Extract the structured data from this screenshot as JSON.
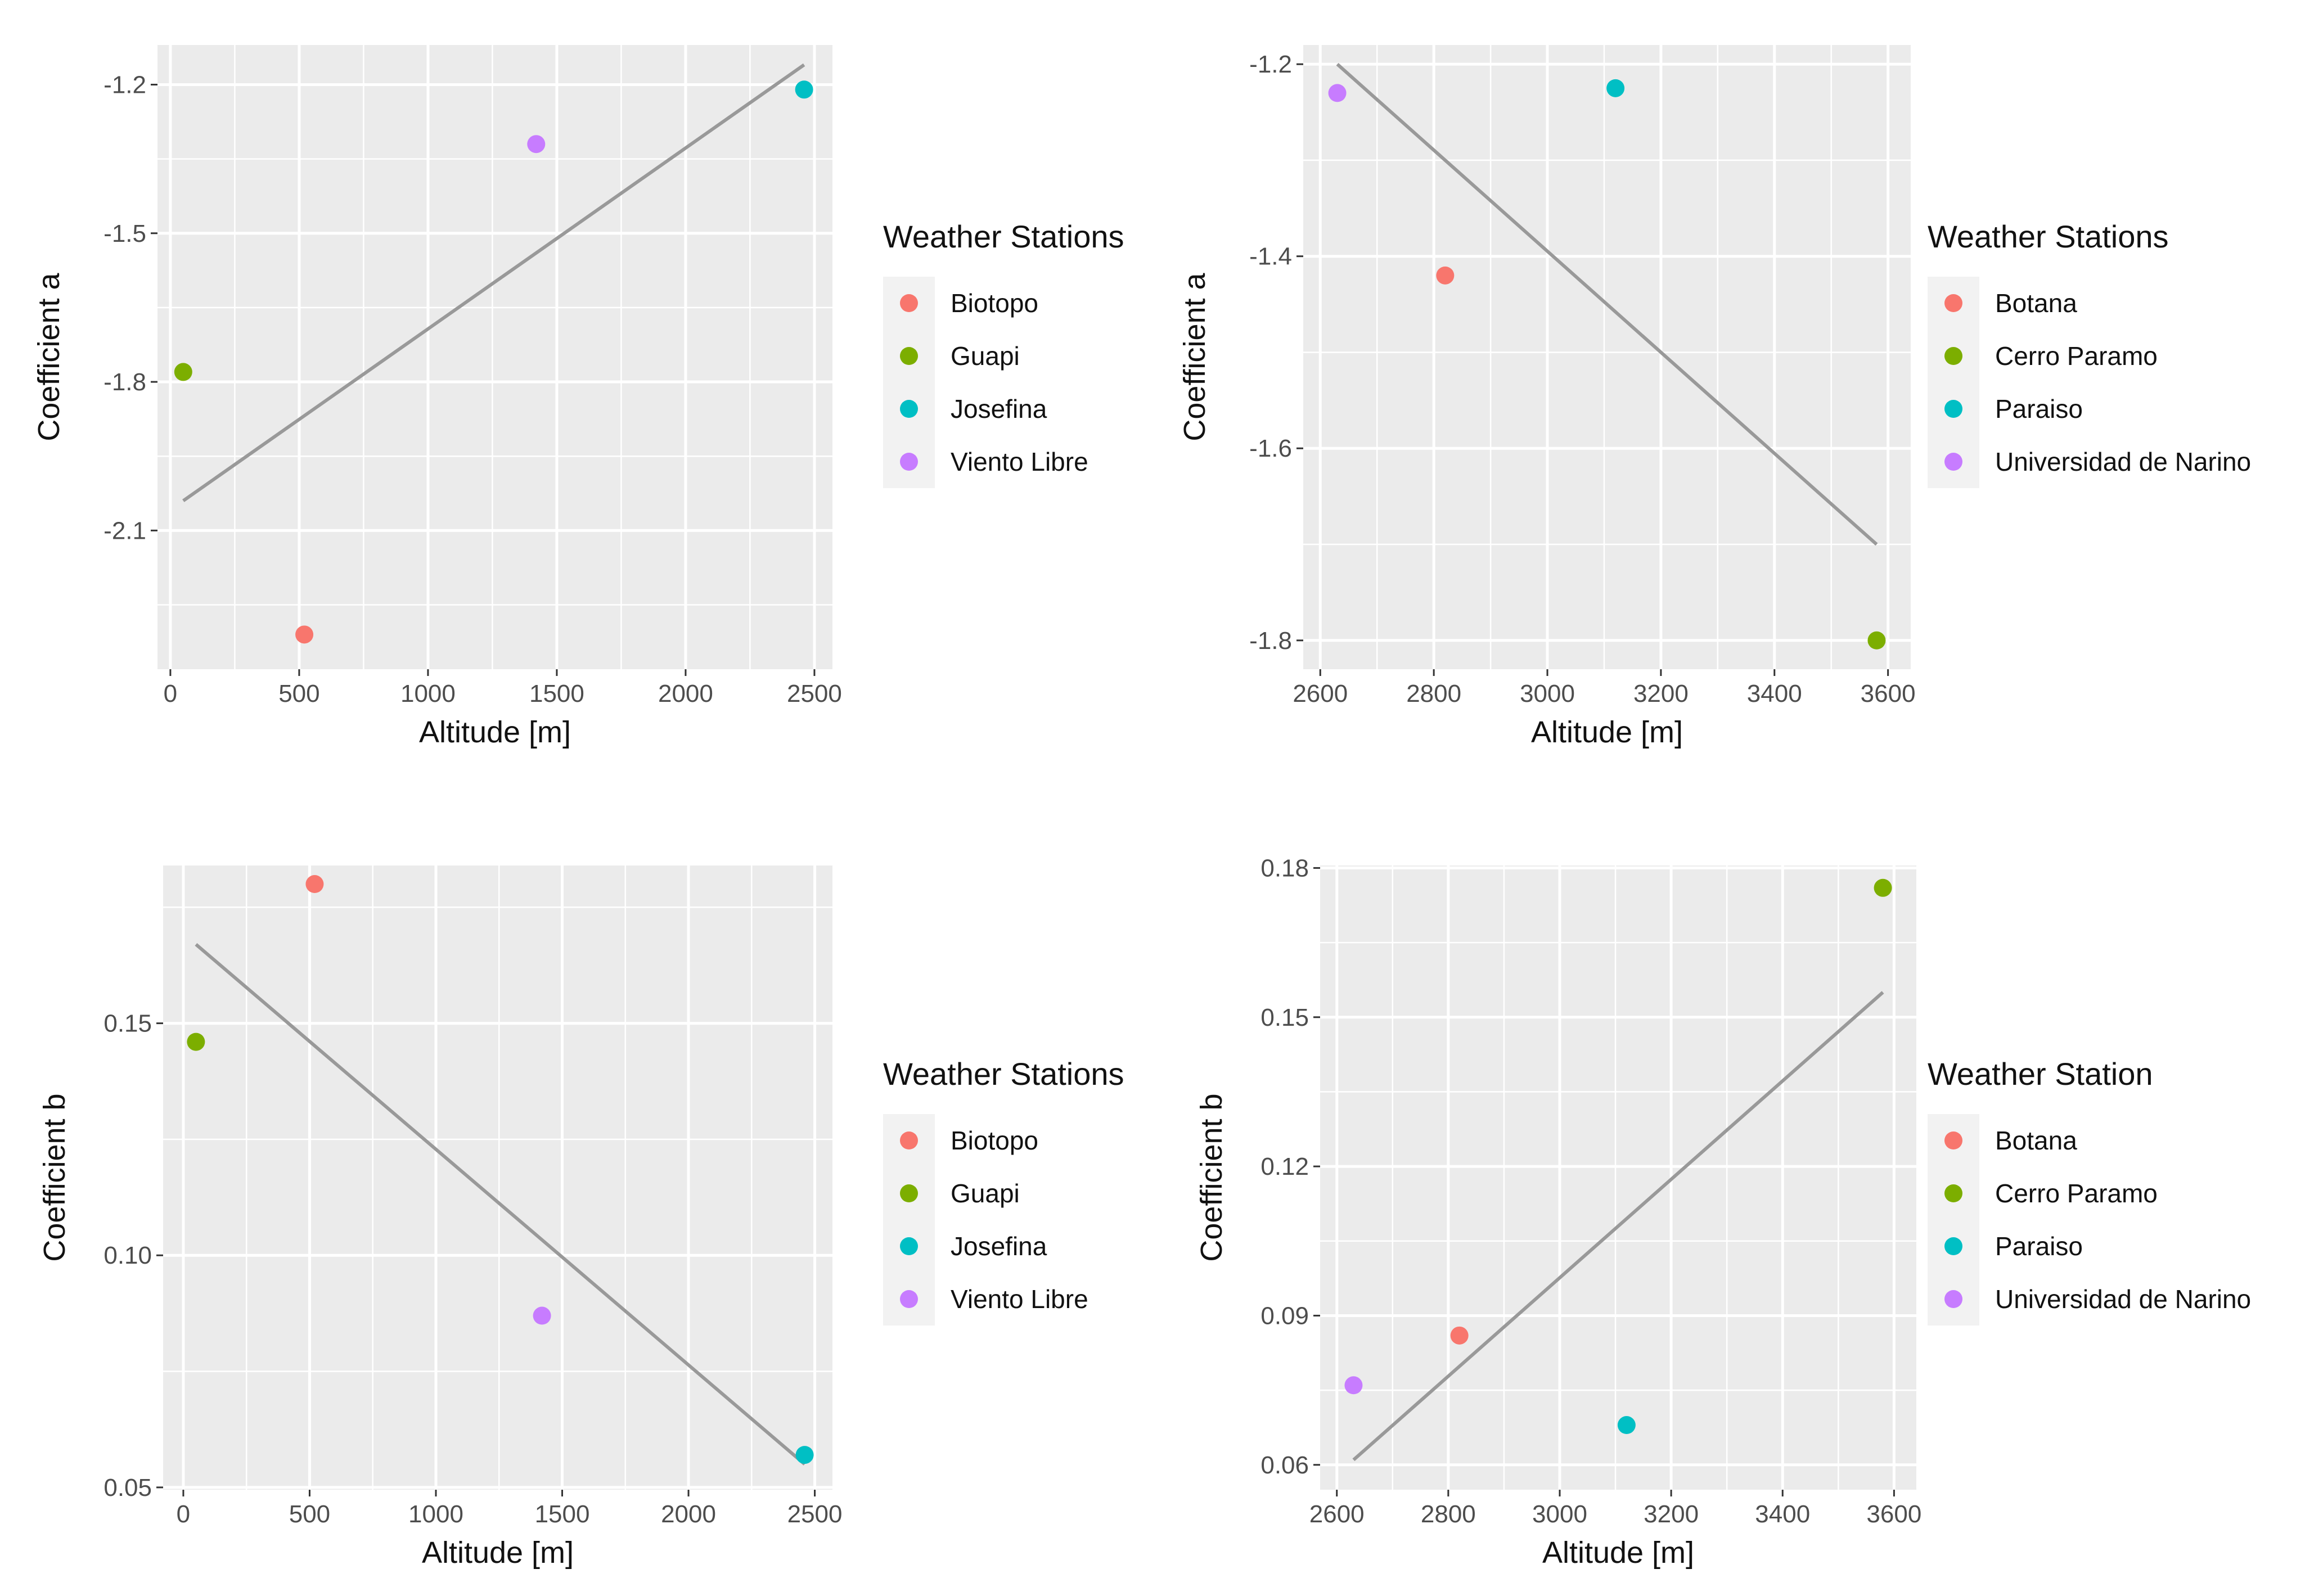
{
  "chart_data": [
    {
      "type": "scatter",
      "xlabel": "Altitude [m]",
      "ylabel": "Coefficient a",
      "xlim": [
        -50,
        2570
      ],
      "ylim": [
        -2.38,
        -1.12
      ],
      "xticks": [
        0,
        500,
        1000,
        1500,
        2000,
        2500
      ],
      "xtick_labels": [
        "0",
        "500",
        "1000",
        "1500",
        "2000",
        "2500"
      ],
      "yticks": [
        -1.2,
        -1.5,
        -1.8,
        -2.1
      ],
      "ytick_labels": [
        "-1.2",
        "-1.5",
        "-1.8",
        "-2.1"
      ],
      "legend_title": "Weather Stations",
      "series": [
        {
          "name": "Biotopo",
          "color": "#F8766D",
          "x": 520,
          "y": -2.31
        },
        {
          "name": "Guapi",
          "color": "#7CAE00",
          "x": 50,
          "y": -1.78
        },
        {
          "name": "Josefina",
          "color": "#00BFC4",
          "x": 2460,
          "y": -1.21
        },
        {
          "name": "Viento Libre",
          "color": "#C77CFF",
          "x": 1420,
          "y": -1.32
        }
      ],
      "fit_line": {
        "color": "#999999",
        "x": [
          50,
          2460
        ],
        "y": [
          -2.04,
          -1.16
        ]
      }
    },
    {
      "type": "scatter",
      "xlabel": "Altitude [m]",
      "ylabel": "Coefficient a",
      "xlim": [
        2570,
        3640
      ],
      "ylim": [
        -1.83,
        -1.18
      ],
      "xticks": [
        2600,
        2800,
        3000,
        3200,
        3400,
        3600
      ],
      "xtick_labels": [
        "2600",
        "2800",
        "3000",
        "3200",
        "3400",
        "3600"
      ],
      "yticks": [
        -1.2,
        -1.4,
        -1.6,
        -1.8
      ],
      "ytick_labels": [
        "-1.2",
        "-1.4",
        "-1.6",
        "-1.8"
      ],
      "legend_title": "Weather Stations",
      "series": [
        {
          "name": "Botana",
          "color": "#F8766D",
          "x": 2820,
          "y": -1.42
        },
        {
          "name": "Cerro Paramo",
          "color": "#7CAE00",
          "x": 3580,
          "y": -1.8
        },
        {
          "name": "Paraiso",
          "color": "#00BFC4",
          "x": 3120,
          "y": -1.225
        },
        {
          "name": "Universidad de Narino",
          "color": "#C77CFF",
          "x": 2630,
          "y": -1.23
        }
      ],
      "fit_line": {
        "color": "#999999",
        "x": [
          2630,
          3580
        ],
        "y": [
          -1.2,
          -1.7
        ]
      }
    },
    {
      "type": "scatter",
      "xlabel": "Altitude [m]",
      "ylabel": "Coefficient b",
      "xlim": [
        -80,
        2570
      ],
      "ylim": [
        0.0495,
        0.184
      ],
      "xticks": [
        0,
        500,
        1000,
        1500,
        2000,
        2500
      ],
      "xtick_labels": [
        "0",
        "500",
        "1000",
        "1500",
        "2000",
        "2500"
      ],
      "yticks": [
        0.15,
        0.1,
        0.05
      ],
      "ytick_labels": [
        "0.15",
        "0.10",
        "0.05"
      ],
      "legend_title": "Weather Stations",
      "series": [
        {
          "name": "Biotopo",
          "color": "#F8766D",
          "x": 520,
          "y": 0.18
        },
        {
          "name": "Guapi",
          "color": "#7CAE00",
          "x": 50,
          "y": 0.146
        },
        {
          "name": "Josefina",
          "color": "#00BFC4",
          "x": 2460,
          "y": 0.057
        },
        {
          "name": "Viento Libre",
          "color": "#C77CFF",
          "x": 1420,
          "y": 0.087
        }
      ],
      "fit_line": {
        "color": "#999999",
        "x": [
          50,
          2460
        ],
        "y": [
          0.167,
          0.055
        ]
      }
    },
    {
      "type": "scatter",
      "xlabel": "Altitude [m]",
      "ylabel": "Coefficient b",
      "xlim": [
        2570,
        3640
      ],
      "ylim": [
        0.055,
        0.1805
      ],
      "xticks": [
        2600,
        2800,
        3000,
        3200,
        3400,
        3600
      ],
      "xtick_labels": [
        "2600",
        "2800",
        "3000",
        "3200",
        "3400",
        "3600"
      ],
      "yticks": [
        0.18,
        0.15,
        0.12,
        0.09,
        0.06
      ],
      "ytick_labels": [
        "0.18",
        "0.15",
        "0.12",
        "0.09",
        "0.06"
      ],
      "legend_title": "Weather Station",
      "series": [
        {
          "name": "Botana",
          "color": "#F8766D",
          "x": 2820,
          "y": 0.086
        },
        {
          "name": "Cerro Paramo",
          "color": "#7CAE00",
          "x": 3580,
          "y": 0.176
        },
        {
          "name": "Paraiso",
          "color": "#00BFC4",
          "x": 3120,
          "y": 0.068
        },
        {
          "name": "Universidad de Narino",
          "color": "#C77CFF",
          "x": 2630,
          "y": 0.076
        }
      ],
      "fit_line": {
        "color": "#999999",
        "x": [
          2630,
          3580
        ],
        "y": [
          0.061,
          0.155
        ]
      }
    }
  ]
}
